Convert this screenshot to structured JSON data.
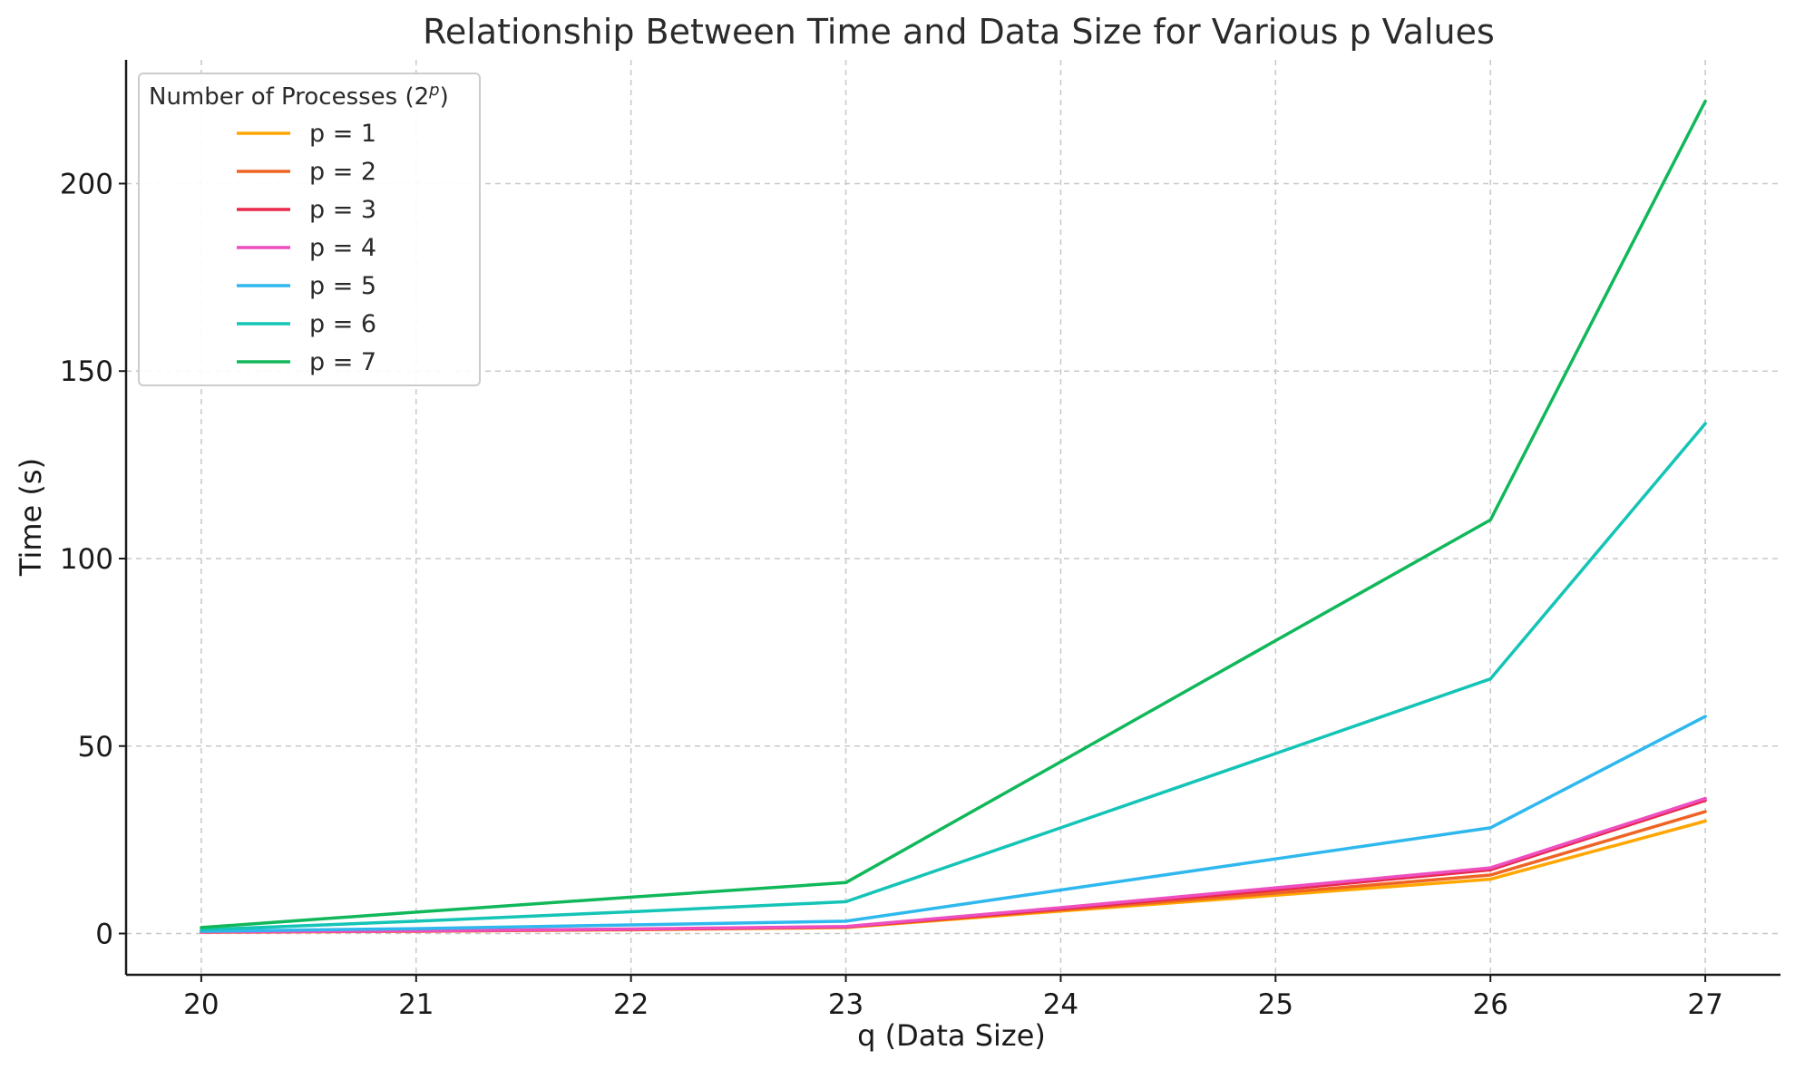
{
  "chart_data": {
    "type": "line",
    "title": "Relationship Between Time and Data Size for Various p Values",
    "xlabel": "q (Data Size)",
    "ylabel": "Time (s)",
    "x": [
      20,
      21,
      22,
      23,
      24,
      25,
      26,
      27
    ],
    "x_ticks": [
      "20",
      "21",
      "22",
      "23",
      "24",
      "25",
      "26",
      "27"
    ],
    "y_ticks": [
      "0",
      "50",
      "100",
      "150",
      "200"
    ],
    "xlim": [
      19.65,
      27.35
    ],
    "ylim": [
      -11,
      233
    ],
    "grid": true,
    "legend": {
      "title": "Number of Processes (2",
      "title_superscript": "p",
      "title_close": ")",
      "placement": "top-left"
    },
    "series": [
      {
        "name": "p = 1",
        "color": "#FFA600",
        "values": [
          0.3,
          0.6,
          1.0,
          1.6,
          6.0,
          10.2,
          14.5,
          30.0
        ]
      },
      {
        "name": "p = 2",
        "color": "#EF6424",
        "values": [
          0.4,
          0.6,
          1.1,
          1.7,
          6.3,
          10.8,
          15.6,
          32.5
        ]
      },
      {
        "name": "p = 3",
        "color": "#E8294C",
        "values": [
          0.4,
          0.7,
          1.1,
          1.8,
          6.6,
          11.6,
          17.0,
          35.5
        ]
      },
      {
        "name": "p = 4",
        "color": "#EE4FC0",
        "values": [
          0.4,
          0.7,
          1.2,
          1.9,
          6.9,
          12.2,
          17.5,
          36.0
        ]
      },
      {
        "name": "p = 5",
        "color": "#2FB8EE",
        "values": [
          0.6,
          1.3,
          2.3,
          3.3,
          11.6,
          19.9,
          28.2,
          57.9
        ]
      },
      {
        "name": "p = 6",
        "color": "#14C4B6",
        "values": [
          1.0,
          3.3,
          5.8,
          8.5,
          28.2,
          48.0,
          67.9,
          136.0
        ]
      },
      {
        "name": "p = 7",
        "color": "#10B85A",
        "values": [
          1.6,
          5.7,
          9.7,
          13.6,
          45.8,
          78.1,
          110.3,
          222.0
        ]
      }
    ]
  }
}
